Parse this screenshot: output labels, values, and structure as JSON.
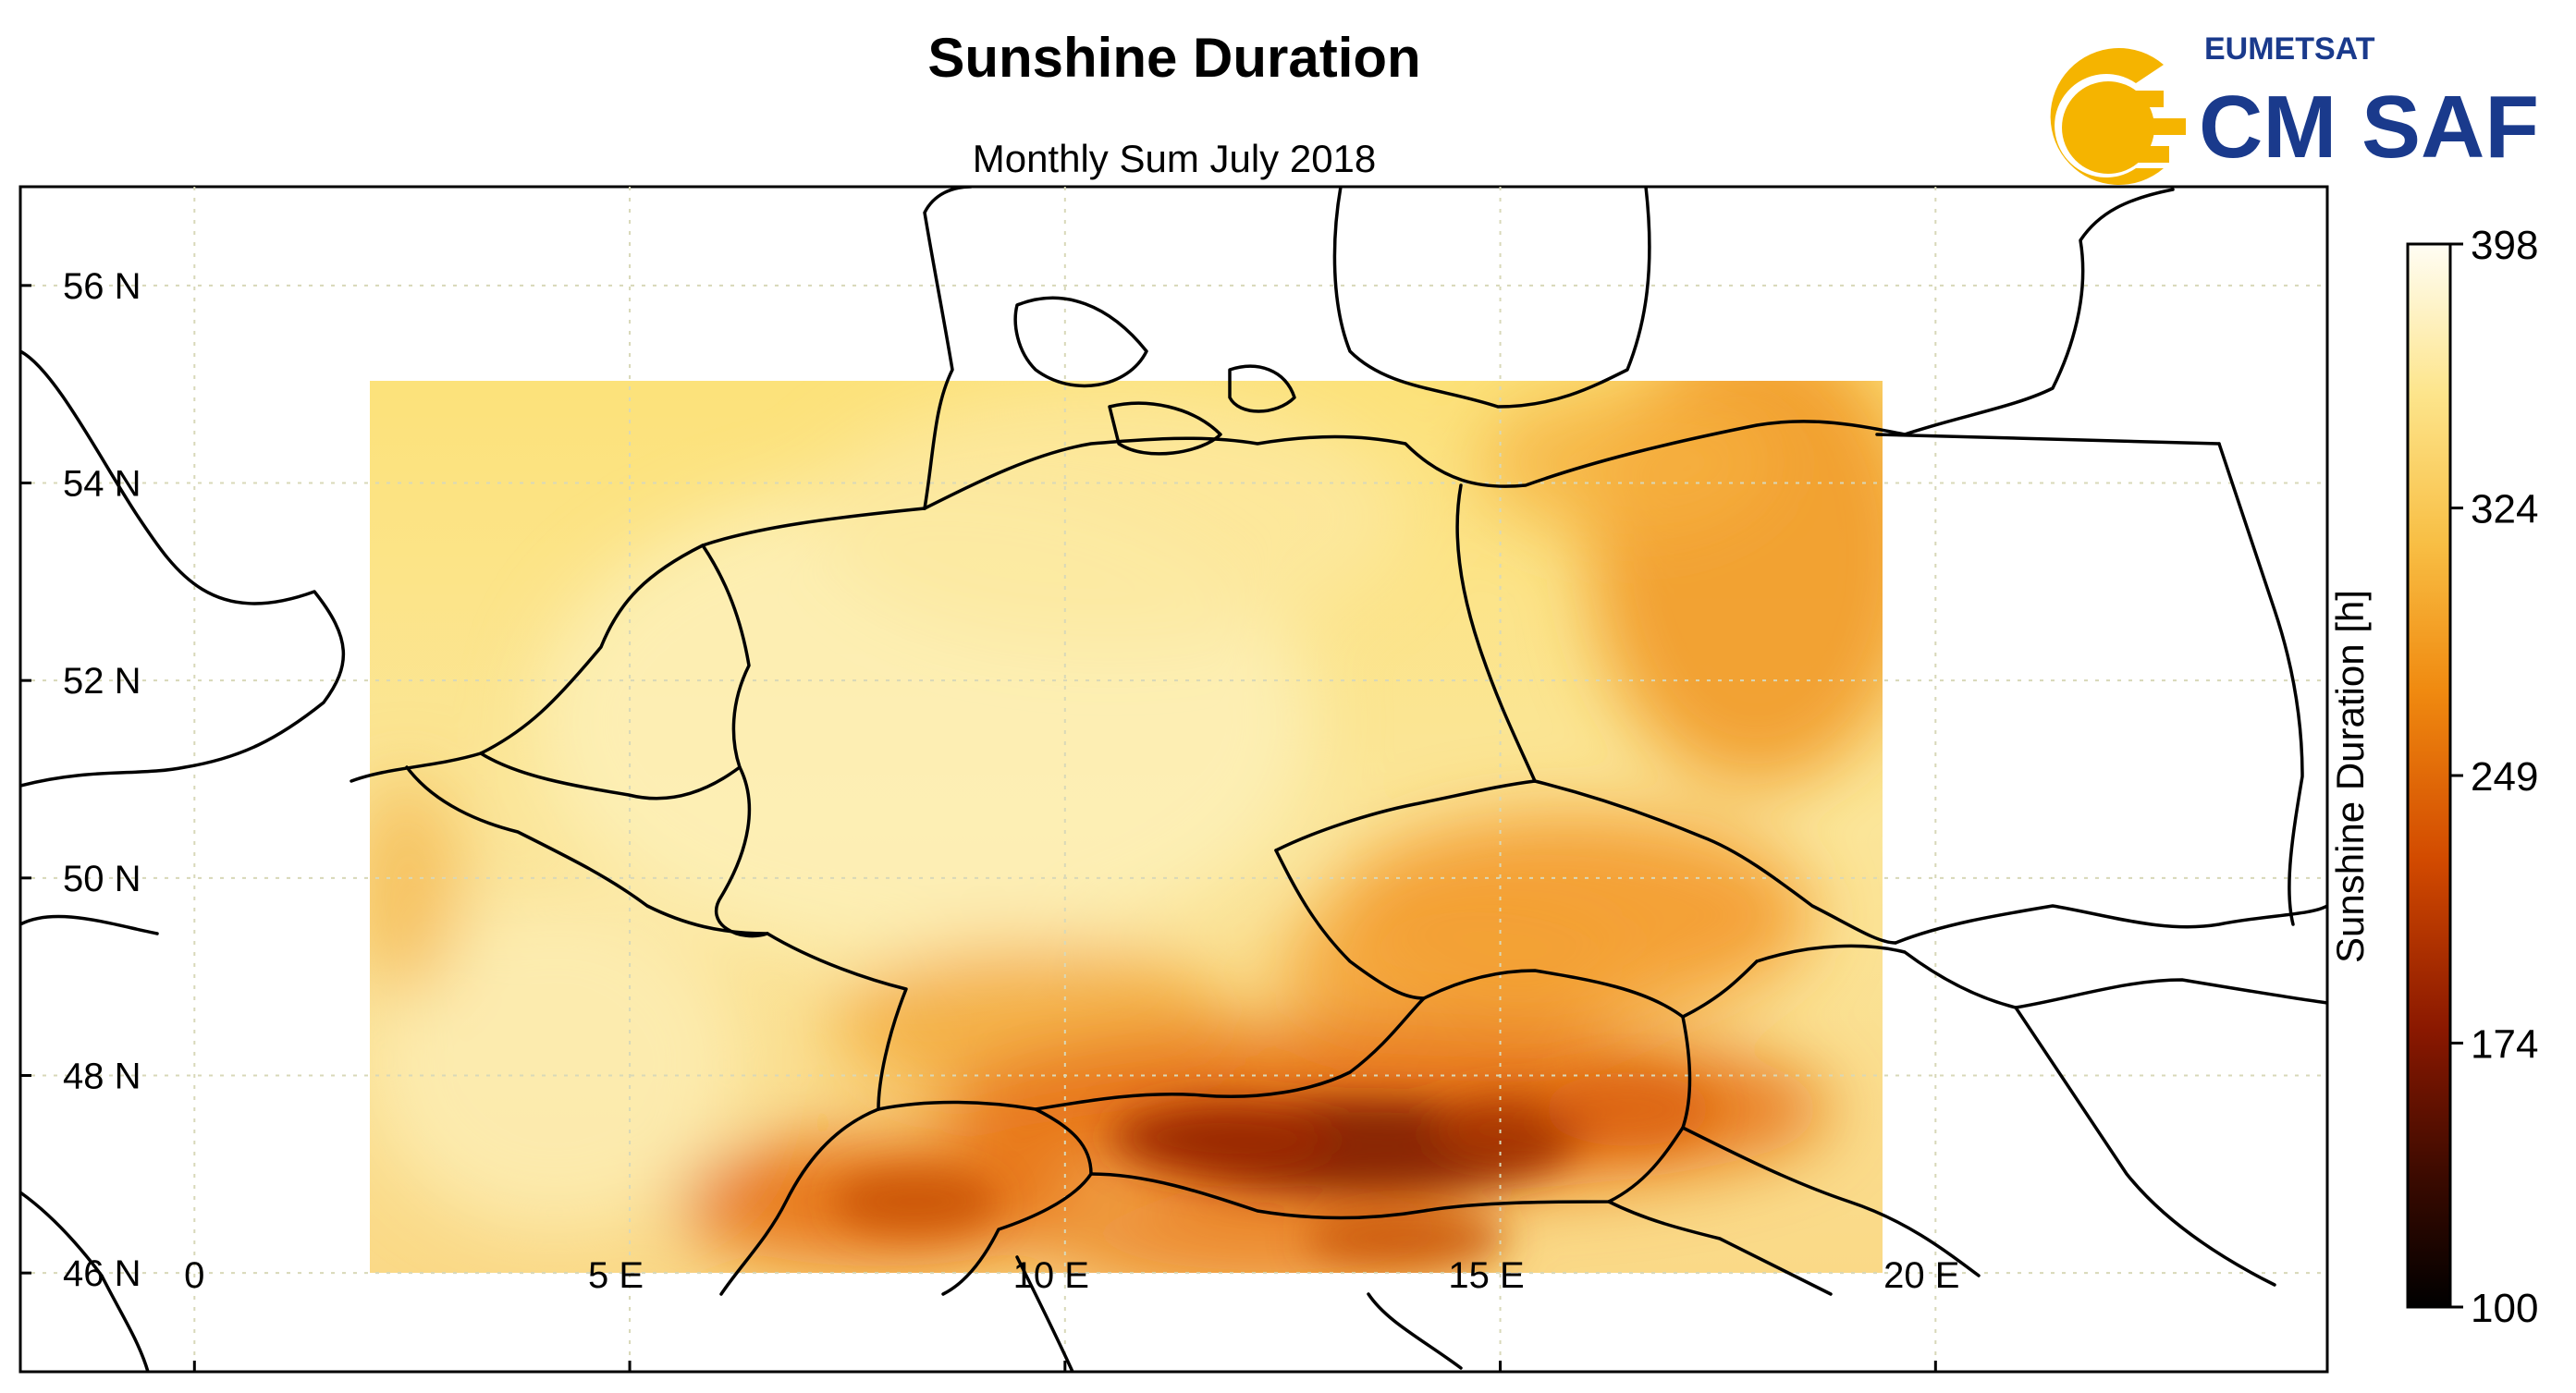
{
  "title": "Sunshine Duration",
  "subtitle": "Monthly Sum July 2018",
  "logo": {
    "top_text": "EUMETSAT",
    "main_text": "CM SAF",
    "accent_color": "#f5b400",
    "text_color": "#1a3a8c"
  },
  "map": {
    "lon_ticks": [
      {
        "label": "0",
        "value": 0
      },
      {
        "label": "5 E",
        "value": 5
      },
      {
        "label": "10 E",
        "value": 10
      },
      {
        "label": "15 E",
        "value": 15
      },
      {
        "label": "20 E",
        "value": 20
      }
    ],
    "lat_ticks": [
      {
        "label": "56 N",
        "value": 56
      },
      {
        "label": "54 N",
        "value": 54
      },
      {
        "label": "52 N",
        "value": 52
      },
      {
        "label": "50 N",
        "value": 50
      },
      {
        "label": "48 N",
        "value": 48
      },
      {
        "label": "46 N",
        "value": 46
      }
    ],
    "lon_range": [
      -2,
      24.5
    ],
    "lat_range": [
      45,
      57
    ],
    "data_extent": {
      "lon": [
        2,
        19.4
      ],
      "lat": [
        46,
        55
      ]
    },
    "grid": true
  },
  "colorbar": {
    "label": "Sunshine Duration [h]",
    "min": 100,
    "max": 398,
    "ticks": [
      398,
      324,
      249,
      174,
      100
    ]
  }
}
